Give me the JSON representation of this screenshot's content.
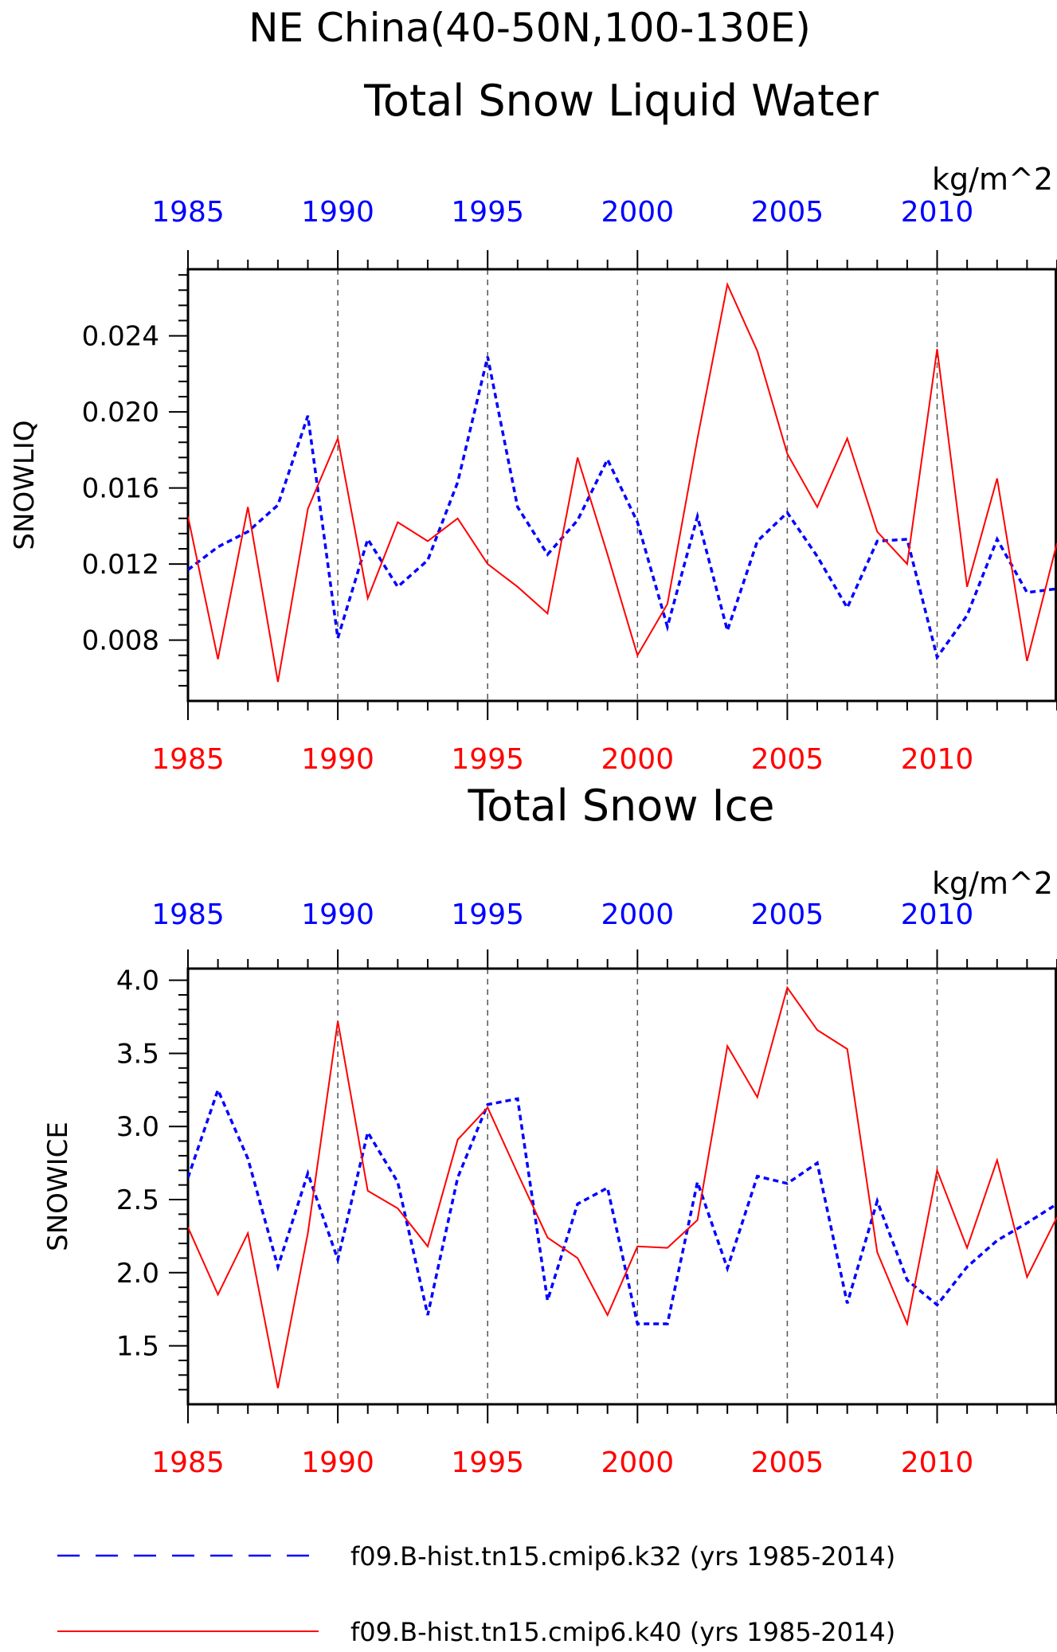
{
  "figure": {
    "title": "NE China(40-50N,100-130E)"
  },
  "colors": {
    "k32": "#0000ff",
    "k40": "#ff0000",
    "axis": "#000000",
    "grid": "#555555"
  },
  "legend": {
    "placement": "bottom",
    "entries": [
      {
        "label": "f09.B-hist.tn15.cmip6.k32 (yrs 1985-2014)",
        "style": "dashed",
        "color": "#0000ff"
      },
      {
        "label": "f09.B-hist.tn15.cmip6.k40 (yrs 1985-2014)",
        "style": "solid",
        "color": "#ff0000"
      }
    ]
  },
  "chart_data": [
    {
      "type": "line",
      "title": "Total Snow Liquid Water",
      "units": "kg/m^2",
      "ylabel": "SNOWLIQ",
      "xlim": [
        1985,
        2014
      ],
      "ylim": [
        0.0048,
        0.0275
      ],
      "yticks": [
        "0.008",
        "0.012",
        "0.016",
        "0.020",
        "0.024"
      ],
      "xticks": [
        "1985",
        "1990",
        "1995",
        "2000",
        "2005",
        "2010"
      ],
      "grid": "vertical-dashed",
      "x": [
        1985,
        1986,
        1987,
        1988,
        1989,
        1990,
        1991,
        1992,
        1993,
        1994,
        1995,
        1996,
        1997,
        1998,
        1999,
        2000,
        2001,
        2002,
        2003,
        2004,
        2005,
        2006,
        2007,
        2008,
        2009,
        2010,
        2011,
        2012,
        2013,
        2014
      ],
      "series": [
        {
          "name": "f09.B-hist.tn15.cmip6.k32 (yrs 1985-2014)",
          "values": [
            0.0117,
            0.0129,
            0.0137,
            0.0151,
            0.0198,
            0.0081,
            0.0133,
            0.0108,
            0.0122,
            0.0163,
            0.0229,
            0.015,
            0.0125,
            0.0143,
            0.0175,
            0.0142,
            0.0087,
            0.0145,
            0.0085,
            0.0132,
            0.0147,
            0.0124,
            0.0097,
            0.0132,
            0.0133,
            0.0071,
            0.0093,
            0.0133,
            0.0105,
            0.0107
          ]
        },
        {
          "name": "f09.B-hist.tn15.cmip6.k40 (yrs 1985-2014)",
          "values": [
            0.0145,
            0.007,
            0.015,
            0.0058,
            0.0149,
            0.0186,
            0.0102,
            0.0142,
            0.0132,
            0.0144,
            0.012,
            0.0108,
            0.0094,
            0.0176,
            0.0125,
            0.0072,
            0.0099,
            0.0186,
            0.0267,
            0.0232,
            0.0178,
            0.015,
            0.0186,
            0.0137,
            0.012,
            0.0233,
            0.0108,
            0.0165,
            0.0069,
            0.0131
          ]
        }
      ]
    },
    {
      "type": "line",
      "title": "Total Snow Ice",
      "units": "kg/m^2",
      "ylabel": "SNOWICE",
      "xlim": [
        1985,
        2014
      ],
      "ylim": [
        1.1,
        4.08
      ],
      "yticks": [
        "1.5",
        "2.0",
        "2.5",
        "3.0",
        "3.5",
        "4.0"
      ],
      "xticks": [
        "1985",
        "1990",
        "1995",
        "2000",
        "2005",
        "2010"
      ],
      "grid": "vertical-dashed",
      "x": [
        1985,
        1986,
        1987,
        1988,
        1989,
        1990,
        1991,
        1992,
        1993,
        1994,
        1995,
        1996,
        1997,
        1998,
        1999,
        2000,
        2001,
        2002,
        2003,
        2004,
        2005,
        2006,
        2007,
        2008,
        2009,
        2010,
        2011,
        2012,
        2013,
        2014
      ],
      "series": [
        {
          "name": "f09.B-hist.tn15.cmip6.k32 (yrs 1985-2014)",
          "values": [
            2.65,
            3.25,
            2.78,
            2.04,
            2.68,
            2.09,
            2.96,
            2.62,
            1.71,
            2.65,
            3.15,
            3.19,
            1.81,
            2.47,
            2.58,
            1.65,
            1.65,
            2.62,
            2.03,
            2.66,
            2.61,
            2.75,
            1.79,
            2.49,
            1.95,
            1.78,
            2.04,
            2.22,
            2.34,
            2.47
          ]
        },
        {
          "name": "f09.B-hist.tn15.cmip6.k40 (yrs 1985-2014)",
          "values": [
            2.31,
            1.85,
            2.27,
            1.21,
            2.27,
            3.72,
            2.56,
            2.44,
            2.18,
            2.91,
            3.13,
            2.68,
            2.24,
            2.1,
            1.71,
            2.18,
            2.17,
            2.36,
            3.55,
            3.2,
            3.95,
            3.66,
            3.53,
            2.14,
            1.65,
            2.7,
            2.17,
            2.77,
            1.97,
            2.38
          ]
        }
      ]
    }
  ]
}
